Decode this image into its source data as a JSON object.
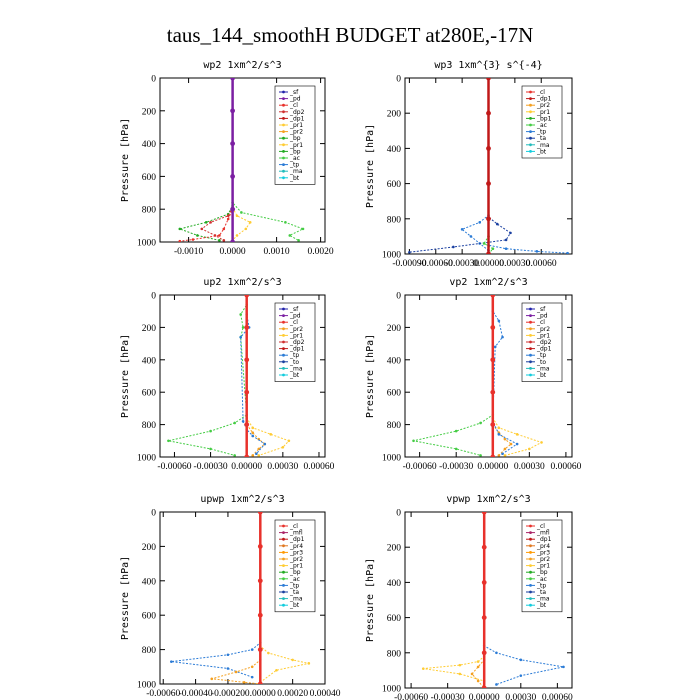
{
  "figure_title": "taus_144_smoothH  BUDGET at280E,-17N",
  "colors": {
    "_sf": "#2222aa",
    "_pd": "#7b1fa2",
    "_cl": "#e8312b",
    "_dp2": "#d03030",
    "_dp1": "#c01818",
    "_pr1": "#ffcc33",
    "_pr2": "#f4a020",
    "_pr3": "#ff9900",
    "_pr4": "#e07820",
    "_bp": "#22aa22",
    "_bp1": "#22aa22",
    "_ac": "#44cc44",
    "_tp": "#2b7bd6",
    "_ta": "#1a3fa0",
    "_to": "#1a3fa0",
    "_ma": "#22bbbb",
    "_bt": "#11ccdd",
    "_mfl": "#aa2266"
  },
  "chart_data": [
    {
      "type": "line",
      "title": "wp2   1xm^2/s^3",
      "ylabel": "Pressure [hPa]",
      "ylim": [
        1000,
        0
      ],
      "yticks": [
        0,
        200,
        400,
        600,
        800,
        1000
      ],
      "xlim": [
        -0.00165,
        0.0021
      ],
      "xticks": [
        -0.001,
        0.0,
        0.001,
        0.002
      ],
      "xtick_labels": [
        "-0.0010",
        "0.0000",
        "0.0010",
        "0.0020"
      ],
      "legend": [
        "_sf",
        "_pd",
        "_cl",
        "_dp2",
        "_dp1",
        "_pr1",
        "_pr2",
        "_bp",
        "_pr1",
        "_bp",
        "_ac",
        "_tp",
        "_ma",
        "_bt"
      ],
      "series": [
        {
          "name": "_ac",
          "x": [
            0,
            0,
            0.0002,
            0.0012,
            0.0016,
            0.0013,
            0.0015
          ],
          "y": [
            0,
            760,
            820,
            880,
            920,
            960,
            990
          ]
        },
        {
          "name": "_bp",
          "x": [
            0,
            0,
            -0.0001,
            -0.0006,
            -0.0012,
            -0.0008,
            -0.0003
          ],
          "y": [
            0,
            780,
            830,
            880,
            920,
            960,
            990
          ]
        },
        {
          "name": "_dp2",
          "x": [
            0,
            0,
            -0.0001,
            -0.0005,
            -0.0007,
            -0.0004,
            -0.0002
          ],
          "y": [
            0,
            790,
            840,
            880,
            920,
            960,
            990
          ]
        },
        {
          "name": "_pr1",
          "x": [
            0,
            0,
            0.0001,
            0.0004,
            0.0003,
            0.0001,
            0
          ],
          "y": [
            0,
            790,
            840,
            880,
            920,
            960,
            990
          ]
        },
        {
          "name": "_cl",
          "x": [
            0,
            0,
            -0.0001,
            -0.0002,
            -0.0003,
            -0.0009,
            -0.0012
          ],
          "y": [
            0,
            800,
            860,
            920,
            960,
            985,
            995
          ]
        },
        {
          "name": "_pd",
          "x": [
            0,
            0,
            0,
            0,
            0,
            0
          ],
          "y": [
            0,
            200,
            400,
            600,
            800,
            1000
          ]
        }
      ]
    },
    {
      "type": "line",
      "title": "wp3   1xm^{3} s^{-4}",
      "ylabel": "Pressure [hPa]",
      "ylim": [
        1000,
        0
      ],
      "yticks": [
        0,
        200,
        400,
        600,
        800,
        1000
      ],
      "xlim": [
        -0.00095,
        0.00095
      ],
      "xticks": [
        -0.0009,
        -0.0006,
        -0.0003,
        0.0,
        0.0003,
        0.0006
      ],
      "xtick_labels": [
        "-0.00090",
        "-0.00060",
        "-0.00030",
        "0.00000",
        "0.00030",
        "0.00060"
      ],
      "legend": [
        "_cl",
        "_dp1",
        "_pr2",
        "_pr1",
        "_bp1",
        "_ac",
        "_tp",
        "_ta",
        "_ma",
        "_bt"
      ],
      "series": [
        {
          "name": "_tp",
          "x": [
            0,
            0,
            -0.0001,
            -0.0003,
            -0.0002,
            -0.0001,
            0
          ],
          "y": [
            0,
            780,
            820,
            860,
            900,
            940,
            980
          ]
        },
        {
          "name": "_ta",
          "x": [
            0,
            0,
            0.0001,
            0.00025,
            0.0002,
            -0.0004,
            -0.0009
          ],
          "y": [
            0,
            790,
            830,
            880,
            920,
            960,
            990
          ]
        },
        {
          "name": "_tp",
          "x": [
            0,
            0,
            0.0002,
            0.00055,
            0.0009
          ],
          "y": [
            0,
            950,
            970,
            985,
            995
          ]
        },
        {
          "name": "_ac",
          "x": [
            0,
            0,
            -5e-05,
            5e-05,
            0
          ],
          "y": [
            0,
            900,
            940,
            970,
            1000
          ]
        },
        {
          "name": "_dp1",
          "x": [
            0,
            0,
            0,
            0,
            0,
            0
          ],
          "y": [
            0,
            200,
            400,
            600,
            800,
            1000
          ]
        }
      ]
    },
    {
      "type": "line",
      "title": "up2   1xm^2/s^3",
      "ylabel": "Pressure [hPa]",
      "ylim": [
        1000,
        0
      ],
      "yticks": [
        0,
        200,
        400,
        600,
        800,
        1000
      ],
      "xlim": [
        -0.00072,
        0.00065
      ],
      "xticks": [
        -0.0006,
        -0.0003,
        0.0,
        0.0003,
        0.0006
      ],
      "xtick_labels": [
        "-0.00060",
        "-0.00030",
        "0.00000",
        "0.00030",
        "0.00060"
      ],
      "legend": [
        "_sf",
        "_pd",
        "_cl",
        "_pr2",
        "_pr1",
        "_dp2",
        "_dp1",
        "_tp",
        "_to",
        "_ma",
        "_bt"
      ],
      "series": [
        {
          "name": "_ac",
          "x": [
            0,
            0,
            -5e-05,
            -3e-05,
            -5e-05,
            0,
            -0.0001,
            -0.0003,
            -0.00065,
            -0.0003,
            -0.0001
          ],
          "y": [
            0,
            60,
            120,
            200,
            260,
            740,
            790,
            840,
            900,
            950,
            990
          ]
        },
        {
          "name": "_pr1",
          "x": [
            0,
            0,
            5e-05,
            0.0002,
            0.00035,
            0.0003,
            0.0001
          ],
          "y": [
            0,
            760,
            820,
            860,
            900,
            940,
            990
          ]
        },
        {
          "name": "_pr2",
          "x": [
            0,
            0,
            5e-05,
            0.0001,
            0.00015,
            0.0001,
            5e-05
          ],
          "y": [
            0,
            800,
            850,
            890,
            920,
            950,
            990
          ]
        },
        {
          "name": "_tp",
          "x": [
            0,
            0,
            2e-05,
            -5e-05,
            -3e-05,
            0,
            5e-05,
            0.00015,
            8e-05
          ],
          "y": [
            0,
            120,
            200,
            260,
            780,
            830,
            870,
            920,
            980
          ]
        },
        {
          "name": "_cl",
          "x": [
            0,
            0,
            0,
            0,
            0,
            0
          ],
          "y": [
            0,
            200,
            400,
            600,
            800,
            1000
          ]
        }
      ]
    },
    {
      "type": "line",
      "title": "vp2   1xm^2/s^3",
      "ylabel": "Pressure [hPa]",
      "ylim": [
        1000,
        0
      ],
      "yticks": [
        0,
        200,
        400,
        600,
        800,
        1000
      ],
      "xlim": [
        -0.00072,
        0.00065
      ],
      "xticks": [
        -0.0006,
        -0.0003,
        0.0,
        0.0003,
        0.0006
      ],
      "xtick_labels": [
        "-0.00060",
        "-0.00030",
        "0.00000",
        "0.00030",
        "0.00060"
      ],
      "legend": [
        "_sf",
        "_pd",
        "_cl",
        "_pr2",
        "_pr1",
        "_dp2",
        "_dp1",
        "_tp",
        "_to",
        "_ma",
        "_bt"
      ],
      "series": [
        {
          "name": "_ac",
          "x": [
            0,
            0,
            -0.0001,
            -0.0003,
            -0.00065,
            -0.0003,
            -0.0001
          ],
          "y": [
            0,
            740,
            790,
            840,
            900,
            950,
            990
          ]
        },
        {
          "name": "_pr1",
          "x": [
            0,
            0,
            5e-05,
            0.0002,
            0.0004,
            0.0003,
            0.0001
          ],
          "y": [
            0,
            760,
            820,
            860,
            910,
            950,
            990
          ]
        },
        {
          "name": "_pr2",
          "x": [
            0,
            0,
            5e-05,
            0.0001,
            0.00015,
            0.0001,
            5e-05
          ],
          "y": [
            0,
            800,
            850,
            890,
            920,
            950,
            990
          ]
        },
        {
          "name": "_tp",
          "x": [
            0,
            0,
            5e-05,
            8e-05,
            2e-05,
            0,
            5e-05,
            0.0002,
            8e-05
          ],
          "y": [
            0,
            100,
            160,
            260,
            320,
            780,
            860,
            920,
            980
          ]
        },
        {
          "name": "_cl",
          "x": [
            0,
            0,
            0,
            0,
            0,
            0
          ],
          "y": [
            0,
            200,
            400,
            600,
            800,
            1000
          ]
        }
      ]
    },
    {
      "type": "line",
      "title": "upwp   1xm^2/s^3",
      "ylabel": "Pressure [hPa]",
      "ylim": [
        1000,
        0
      ],
      "yticks": [
        0,
        200,
        400,
        600,
        800,
        1000
      ],
      "xlim": [
        -0.00062,
        0.0004
      ],
      "xticks": [
        -0.0006,
        -0.0004,
        -0.0002,
        0.0,
        0.0002,
        0.0004
      ],
      "xtick_labels": [
        "-0.00060",
        "-0.00040",
        "-0.00020",
        "0.00000",
        "0.00020",
        "0.00040"
      ],
      "legend": [
        "_cl",
        "_mfl",
        "_dp1",
        "_pr4",
        "_pr3",
        "_pr2",
        "_pr1",
        "_bp",
        "_ac",
        "_tp",
        "_ta",
        "_ma",
        "_bt"
      ],
      "series": [
        {
          "name": "_tp",
          "x": [
            0,
            0,
            -5e-05,
            -0.0002,
            -0.00055,
            -0.0002,
            -5e-05
          ],
          "y": [
            0,
            760,
            800,
            830,
            870,
            910,
            960
          ]
        },
        {
          "name": "_pr1",
          "x": [
            0,
            0,
            5e-05,
            0.0002,
            0.0003,
            0.0001,
            0
          ],
          "y": [
            0,
            780,
            820,
            860,
            880,
            920,
            990
          ]
        },
        {
          "name": "_pr2",
          "x": [
            0,
            0,
            -5e-05,
            -0.00015,
            -0.0003,
            -0.0001,
            0
          ],
          "y": [
            0,
            860,
            900,
            930,
            970,
            990,
            1000
          ]
        },
        {
          "name": "_cl",
          "x": [
            0,
            0,
            0,
            0,
            0,
            0
          ],
          "y": [
            0,
            200,
            400,
            600,
            800,
            1000
          ]
        }
      ]
    },
    {
      "type": "line",
      "title": "vpwp   1xm^2/s^3",
      "ylabel": "Pressure [hPa]",
      "ylim": [
        1000,
        0
      ],
      "yticks": [
        0,
        200,
        400,
        600,
        800,
        1000
      ],
      "xlim": [
        -0.00065,
        0.00072
      ],
      "xticks": [
        -0.0006,
        -0.0003,
        0.0,
        0.0003,
        0.0006
      ],
      "xtick_labels": [
        "-0.00060",
        "-0.00030",
        "0.00000",
        "0.00030",
        "0.00060"
      ],
      "legend": [
        "_cl",
        "_mfl",
        "_dp1",
        "_pr4",
        "_pr3",
        "_pr2",
        "_pr1",
        "_bp",
        "_ac",
        "_tp",
        "_ta",
        "_ma",
        "_bt"
      ],
      "series": [
        {
          "name": "_tp",
          "x": [
            0,
            0,
            0.0001,
            0.0003,
            0.00065,
            0.0003,
            0.0001
          ],
          "y": [
            0,
            760,
            800,
            840,
            880,
            930,
            980
          ]
        },
        {
          "name": "_pr1",
          "x": [
            0,
            0,
            -5e-05,
            -0.0002,
            -0.0005,
            -0.0002,
            0
          ],
          "y": [
            0,
            820,
            850,
            870,
            890,
            920,
            960
          ]
        },
        {
          "name": "_pr2",
          "x": [
            0,
            0,
            -5e-05,
            -0.0001,
            -5e-05,
            0
          ],
          "y": [
            0,
            840,
            880,
            920,
            960,
            1000
          ]
        },
        {
          "name": "_cl",
          "x": [
            0,
            0,
            0,
            0,
            0,
            0
          ],
          "y": [
            0,
            200,
            400,
            600,
            800,
            1000
          ]
        }
      ]
    }
  ]
}
